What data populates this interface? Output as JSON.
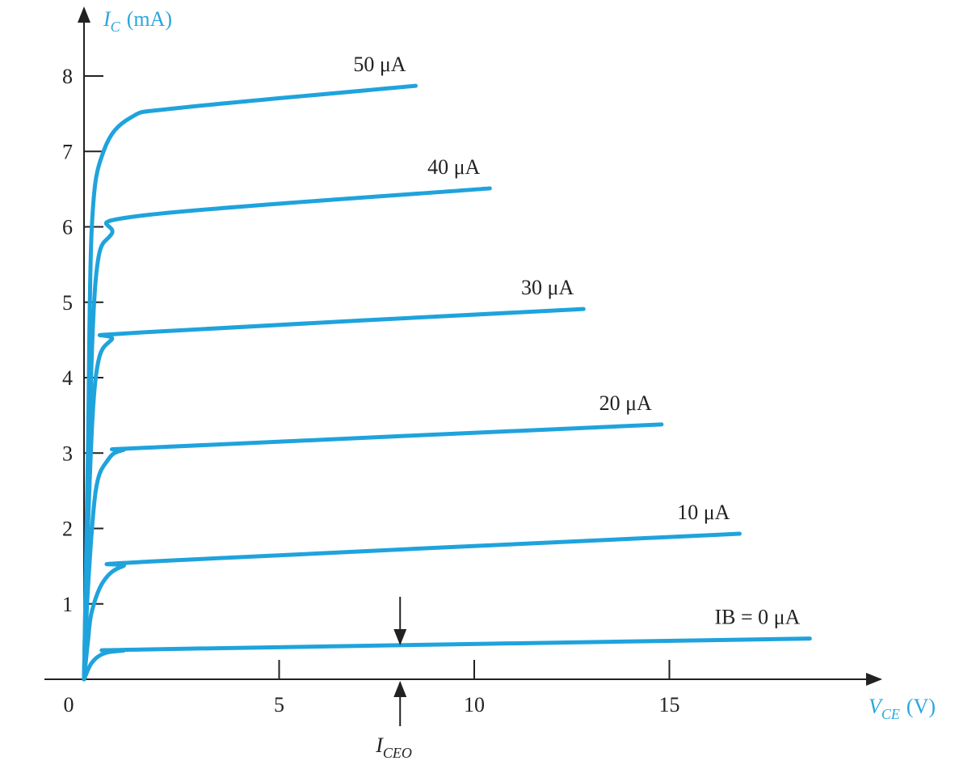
{
  "chart_data": {
    "type": "line",
    "y_label": {
      "symbol": "I",
      "subscript": "C",
      "unit": "(mA)"
    },
    "x_label": {
      "symbol": "V",
      "subscript": "CE",
      "unit": "(V)"
    },
    "xlim": [
      0,
      20.4
    ],
    "ylim": [
      0,
      8.9
    ],
    "xticks": [
      0,
      5,
      10,
      15
    ],
    "yticks": [
      1,
      2,
      3,
      4,
      5,
      6,
      7,
      8
    ],
    "series": [
      {
        "name": "IB = 0 μA",
        "color": "#1fa3dc",
        "x": [
          0,
          0.2,
          0.5,
          1,
          2,
          18.6
        ],
        "values": [
          0,
          0.22,
          0.34,
          0.38,
          0.4,
          0.54
        ]
      },
      {
        "name": "10 μA",
        "color": "#1fa3dc",
        "x": [
          0,
          0.1,
          0.2,
          0.5,
          1,
          2,
          16.8
        ],
        "values": [
          0,
          0.5,
          0.9,
          1.3,
          1.5,
          1.57,
          1.93
        ]
      },
      {
        "name": "20 μA",
        "color": "#1fa3dc",
        "x": [
          0,
          0.1,
          0.3,
          0.6,
          1,
          2,
          14.8
        ],
        "values": [
          0,
          1.2,
          2.5,
          2.9,
          3.04,
          3.08,
          3.38
        ]
      },
      {
        "name": "30 μA",
        "color": "#1fa3dc",
        "x": [
          0,
          0.1,
          0.3,
          0.7,
          1.5,
          12.8
        ],
        "values": [
          0,
          2.0,
          4.0,
          4.5,
          4.6,
          4.91
        ]
      },
      {
        "name": "40 μA",
        "color": "#1fa3dc",
        "x": [
          0,
          0.1,
          0.3,
          0.7,
          1.5,
          10.4
        ],
        "values": [
          0,
          2.5,
          5.3,
          5.9,
          6.15,
          6.51
        ]
      },
      {
        "name": "50 μA",
        "color": "#1fa3dc",
        "x": [
          0,
          0.1,
          0.2,
          0.5,
          1.2,
          2.5,
          8.5
        ],
        "values": [
          0,
          3.0,
          6.0,
          7.0,
          7.45,
          7.58,
          7.87
        ]
      }
    ],
    "annotation": {
      "symbol": "I",
      "subscript": "CEO",
      "x": 8.1
    }
  }
}
